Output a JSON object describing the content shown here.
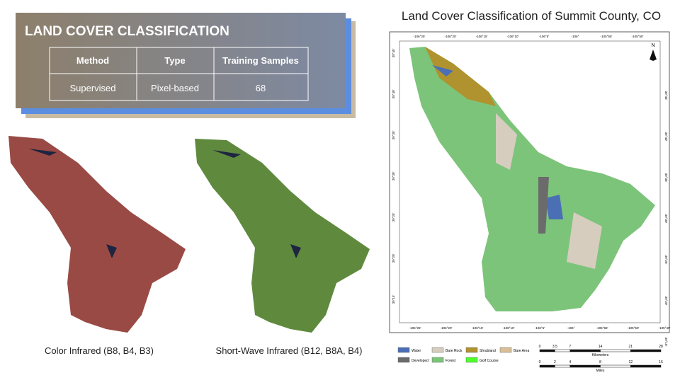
{
  "panel": {
    "title": "LAND COVER CLASSIFICATION",
    "table": {
      "headers": [
        "Method",
        "Type",
        "Training Samples"
      ],
      "rows": [
        [
          "Supervised",
          "Pixel-based",
          68
        ]
      ]
    }
  },
  "images": [
    {
      "caption": "Color Infrared (B8, B4, B3)"
    },
    {
      "caption": "Short-Wave Infrared (B12, B8A, B4)"
    }
  ],
  "map": {
    "title": "Land Cover Classification of Summit County, CO",
    "north": "N",
    "top_labels": [
      "-106°25'",
      "-106°20'",
      "-106°15'",
      "-106°10'",
      "-106°5'",
      "-106°",
      "-105°55'",
      "-105°50'"
    ],
    "bottom_labels": [
      "-106°25'",
      "-106°20'",
      "-106°15'",
      "-106°10'",
      "-106°5'",
      "-106°",
      "-105°55'",
      "-105°50'",
      "-105°49'"
    ],
    "left_labels": [
      "39°45'",
      "39°40'",
      "39°35'",
      "39°30'",
      "39°25'",
      "39°20'",
      "39°15'"
    ],
    "right_labels": [
      "39°45'",
      "39°40'",
      "39°35'",
      "39°30'",
      "39°25'",
      "39°20'",
      "39°15'"
    ],
    "legend": [
      {
        "name": "Water",
        "color": "#4a6fb5"
      },
      {
        "name": "Bare Rock",
        "color": "#d6cdbf"
      },
      {
        "name": "Shrubland",
        "color": "#b0922e"
      },
      {
        "name": "Bare Area",
        "color": "#d9bf96"
      },
      {
        "name": "Developed",
        "color": "#6b6b6b"
      },
      {
        "name": "Forest",
        "color": "#7cc47a"
      },
      {
        "name": "Golf Course",
        "color": "#4cff2a"
      }
    ],
    "scale": {
      "km_label": "Kilometers",
      "km": [
        0,
        3.5,
        7,
        14,
        21,
        28
      ],
      "mi_label": "Miles",
      "mi": [
        0,
        2,
        4,
        8,
        12,
        16
      ]
    }
  }
}
